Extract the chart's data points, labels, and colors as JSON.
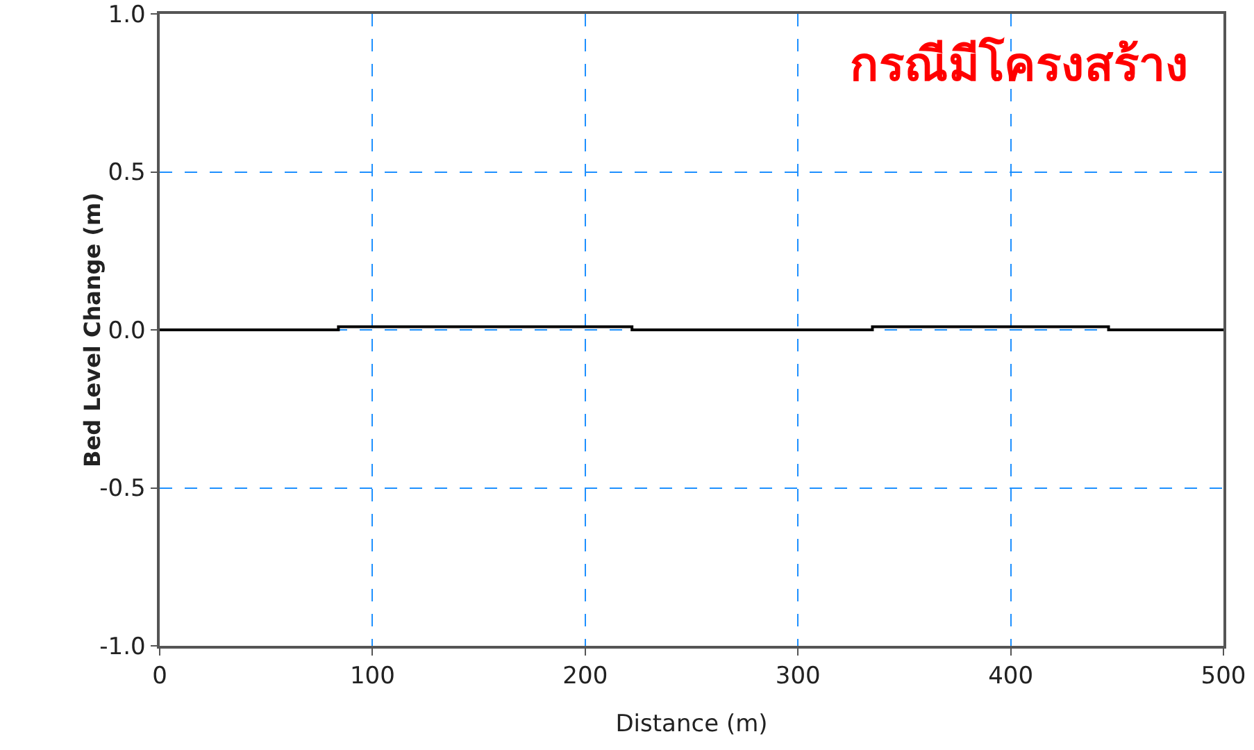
{
  "chart_data": {
    "type": "line",
    "xlabel": "Distance (m)",
    "ylabel": "Bed Level Change (m)",
    "annotations": [
      "กรณีมีโครงสร้าง"
    ],
    "x": [
      0,
      84,
      84,
      222,
      222,
      335,
      335,
      446,
      446,
      500
    ],
    "series": [
      {
        "color": "#000000",
        "values": [
          0,
          0,
          0.01,
          0.01,
          0,
          0,
          0.01,
          0.01,
          0,
          0
        ]
      }
    ],
    "xlim": [
      0,
      500
    ],
    "xticks": [
      0,
      100,
      200,
      300,
      400,
      500
    ],
    "ylim": [
      -1,
      1
    ],
    "yticks": [
      {
        "value": -1,
        "label": "-1.0"
      },
      {
        "value": -0.5,
        "label": "-0.5"
      },
      {
        "value": 0,
        "label": "0.0"
      },
      {
        "value": 0.5,
        "label": "0.5"
      },
      {
        "value": 1,
        "label": "1.0"
      }
    ],
    "grid": true,
    "marker": "none",
    "line_style": "solid"
  }
}
